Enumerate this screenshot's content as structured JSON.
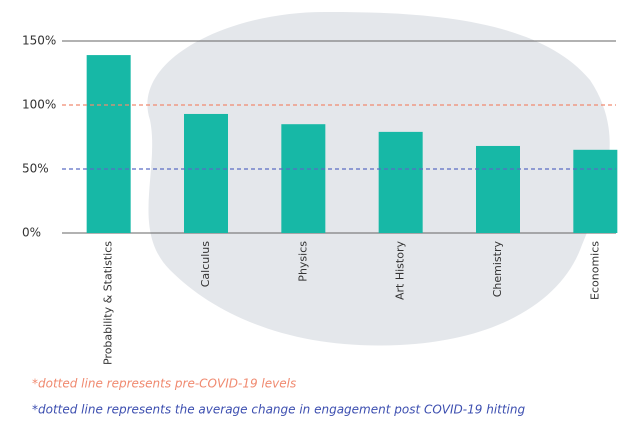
{
  "chart_data": {
    "type": "bar",
    "categories": [
      "Probability & Statistics",
      "Calculus",
      "Physics",
      "Art History",
      "Chemistry",
      "Economics"
    ],
    "values": [
      139,
      93,
      85,
      79,
      68,
      65
    ],
    "color": "#17b8a6",
    "ylim": [
      0,
      150
    ],
    "yticks": [
      {
        "value": 0,
        "label": "0%"
      },
      {
        "value": 50,
        "label": "50%"
      },
      {
        "value": 100,
        "label": "100%"
      },
      {
        "value": 150,
        "label": "150%"
      }
    ],
    "grid": false,
    "reference_lines": [
      {
        "value": 100,
        "color": "#f08a70"
      },
      {
        "value": 50,
        "color": "#5a6cc4"
      }
    ],
    "annotations": [
      {
        "text": "*dotted line represents pre-COVID-19 levels",
        "color": "#f08a70"
      },
      {
        "text": "*dotted line represents the average change in engagement post COVID-19 hitting",
        "color": "#3d4fb0"
      }
    ]
  }
}
